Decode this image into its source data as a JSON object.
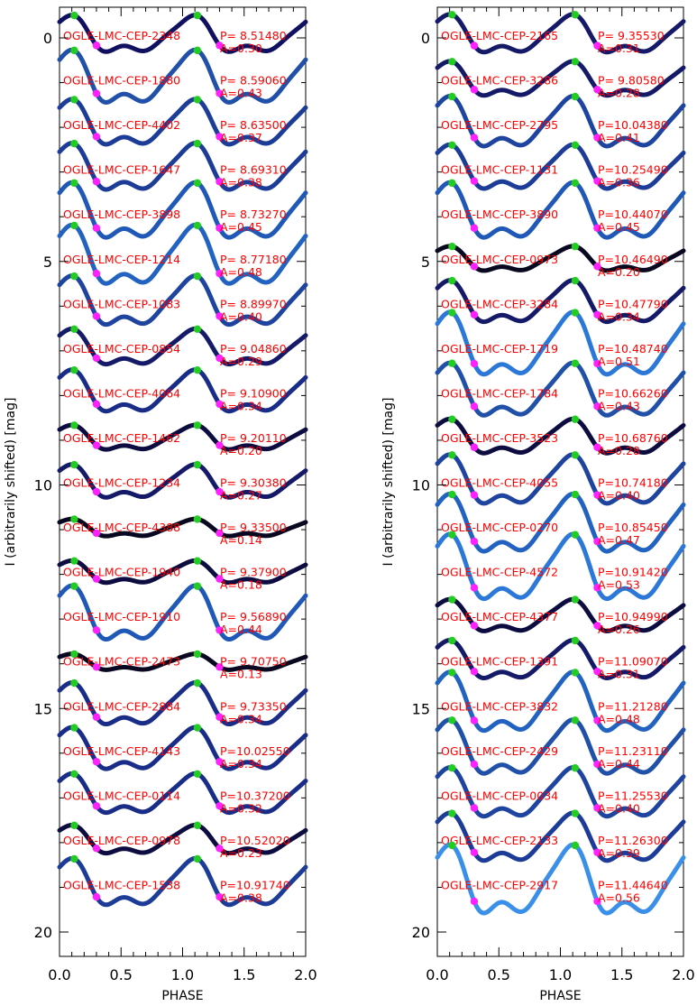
{
  "chart_data": [
    {
      "type": "scatter",
      "panel": "left",
      "xlabel": "PHASE",
      "ylabel": "I (arbitrarily shifted) [mag]",
      "xlim": [
        0.0,
        2.0
      ],
      "ylim": [
        20.5,
        -0.9
      ],
      "y_inverted": true,
      "xticks": [
        "0.0",
        "0.5",
        "1.0",
        "1.5",
        "2.0"
      ],
      "yticks": [
        "0",
        "5",
        "10",
        "15",
        "20"
      ],
      "stars": [
        {
          "name": "OGLE-LMC-CEP-2348",
          "period": "P= 8.51480",
          "amp": "A=0.30",
          "color": "#101060"
        },
        {
          "name": "OGLE-LMC-CEP-1880",
          "period": "P= 8.59060",
          "amp": "A=0.43",
          "color": "#2050a8"
        },
        {
          "name": "OGLE-LMC-CEP-4402",
          "period": "P= 8.63500",
          "amp": "A=0.37",
          "color": "#1c3c98"
        },
        {
          "name": "OGLE-LMC-CEP-1647",
          "period": "P= 8.69310",
          "amp": "A=0.38",
          "color": "#1c3c98"
        },
        {
          "name": "OGLE-LMC-CEP-3898",
          "period": "P= 8.73270",
          "amp": "A=0.45",
          "color": "#2058b8"
        },
        {
          "name": "OGLE-LMC-CEP-1214",
          "period": "P= 8.77180",
          "amp": "A=0.48",
          "color": "#2262c0"
        },
        {
          "name": "OGLE-LMC-CEP-1083",
          "period": "P= 8.89970",
          "amp": "A=0.40",
          "color": "#1e44a0"
        },
        {
          "name": "OGLE-LMC-CEP-0854",
          "period": "P= 9.04860",
          "amp": "A=0.29",
          "color": "#141a68"
        },
        {
          "name": "OGLE-LMC-CEP-4064",
          "period": "P= 9.10900",
          "amp": "A=0.34",
          "color": "#182c88"
        },
        {
          "name": "OGLE-LMC-CEP-1462",
          "period": "P= 9.20110",
          "amp": "A=0.20",
          "color": "#0c0c40"
        },
        {
          "name": "OGLE-LMC-CEP-1234",
          "period": "P= 9.30380",
          "amp": "A=0.27",
          "color": "#141a68"
        },
        {
          "name": "OGLE-LMC-CEP-4388",
          "period": "P= 9.33500",
          "amp": "A=0.14",
          "color": "#080820"
        },
        {
          "name": "OGLE-LMC-CEP-1940",
          "period": "P= 9.37900",
          "amp": "A=0.18",
          "color": "#0c0c40"
        },
        {
          "name": "OGLE-LMC-CEP-1910",
          "period": "P= 9.56890",
          "amp": "A=0.44",
          "color": "#2058b8"
        },
        {
          "name": "OGLE-LMC-CEP-2473",
          "period": "P= 9.70750",
          "amp": "A=0.13",
          "color": "#080820"
        },
        {
          "name": "OGLE-LMC-CEP-2884",
          "period": "P= 9.73350",
          "amp": "A=0.34",
          "color": "#182c88"
        },
        {
          "name": "OGLE-LMC-CEP-4143",
          "period": "P=10.02550",
          "amp": "A=0.34",
          "color": "#182c88"
        },
        {
          "name": "OGLE-LMC-CEP-0114",
          "period": "P=10.37200",
          "amp": "A=0.32",
          "color": "#182c88"
        },
        {
          "name": "OGLE-LMC-CEP-0978",
          "period": "P=10.52020",
          "amp": "A=0.23",
          "color": "#0c0c40"
        },
        {
          "name": "OGLE-LMC-CEP-1538",
          "period": "P=10.91740",
          "amp": "A=0.38",
          "color": "#1c3c98"
        }
      ]
    },
    {
      "type": "scatter",
      "panel": "right",
      "xlabel": "PHASE",
      "ylabel": "I (arbitrarily shifted) [mag]",
      "xlim": [
        0.0,
        2.0
      ],
      "ylim": [
        20.5,
        -0.9
      ],
      "y_inverted": true,
      "xticks": [
        "0.0",
        "0.5",
        "1.0",
        "1.5",
        "2.0"
      ],
      "yticks": [
        "0",
        "5",
        "10",
        "15",
        "20"
      ],
      "stars": [
        {
          "name": "OGLE-LMC-CEP-2165",
          "period": "P= 9.35530",
          "amp": "A=0.31",
          "color": "#141a68"
        },
        {
          "name": "OGLE-LMC-CEP-3286",
          "period": "P= 9.80580",
          "amp": "A=0.28",
          "color": "#141a68"
        },
        {
          "name": "OGLE-LMC-CEP-2795",
          "period": "P=10.04380",
          "amp": "A=0.41",
          "color": "#1e44a0"
        },
        {
          "name": "OGLE-LMC-CEP-1131",
          "period": "P=10.25490",
          "amp": "A=0.36",
          "color": "#1c3c98"
        },
        {
          "name": "OGLE-LMC-CEP-3890",
          "period": "P=10.44070",
          "amp": "A=0.45",
          "color": "#2058b8"
        },
        {
          "name": "OGLE-LMC-CEP-0973",
          "period": "P=10.46490",
          "amp": "A=0.20",
          "color": "#080820"
        },
        {
          "name": "OGLE-LMC-CEP-3284",
          "period": "P=10.47790",
          "amp": "A=0.34",
          "color": "#141a68"
        },
        {
          "name": "OGLE-LMC-CEP-1719",
          "period": "P=10.48740",
          "amp": "A=0.51",
          "color": "#2c78d8"
        },
        {
          "name": "OGLE-LMC-CEP-1784",
          "period": "P=10.66260",
          "amp": "A=0.43",
          "color": "#2050a8"
        },
        {
          "name": "OGLE-LMC-CEP-3523",
          "period": "P=10.68760",
          "amp": "A=0.28",
          "color": "#0c0c40"
        },
        {
          "name": "OGLE-LMC-CEP-4055",
          "period": "P=10.74180",
          "amp": "A=0.40",
          "color": "#1e44a0"
        },
        {
          "name": "OGLE-LMC-CEP-0270",
          "period": "P=10.85450",
          "amp": "A=0.47",
          "color": "#2262c0"
        },
        {
          "name": "OGLE-LMC-CEP-4572",
          "period": "P=10.91420",
          "amp": "A=0.53",
          "color": "#2c78d8"
        },
        {
          "name": "OGLE-LMC-CEP-4377",
          "period": "P=10.94990",
          "amp": "A=0.26",
          "color": "#0c0c40"
        },
        {
          "name": "OGLE-LMC-CEP-1391",
          "period": "P=11.09070",
          "amp": "A=0.31",
          "color": "#141a68"
        },
        {
          "name": "OGLE-LMC-CEP-3832",
          "period": "P=11.21280",
          "amp": "A=0.48",
          "color": "#2262c0"
        },
        {
          "name": "OGLE-LMC-CEP-2429",
          "period": "P=11.23110",
          "amp": "A=0.44",
          "color": "#2050a8"
        },
        {
          "name": "OGLE-LMC-CEP-0034",
          "period": "P=11.25530",
          "amp": "A=0.40",
          "color": "#1e44a0"
        },
        {
          "name": "OGLE-LMC-CEP-2133",
          "period": "P=11.26300",
          "amp": "A=0.39",
          "color": "#1c3c98"
        },
        {
          "name": "OGLE-LMC-CEP-2917",
          "period": "P=11.44640",
          "amp": "A=0.56",
          "color": "#3a90e8"
        }
      ]
    }
  ],
  "marker_colors": {
    "max_marker": "#22cc22",
    "bump_marker": "#ff22ff",
    "label": "#ff0000"
  }
}
